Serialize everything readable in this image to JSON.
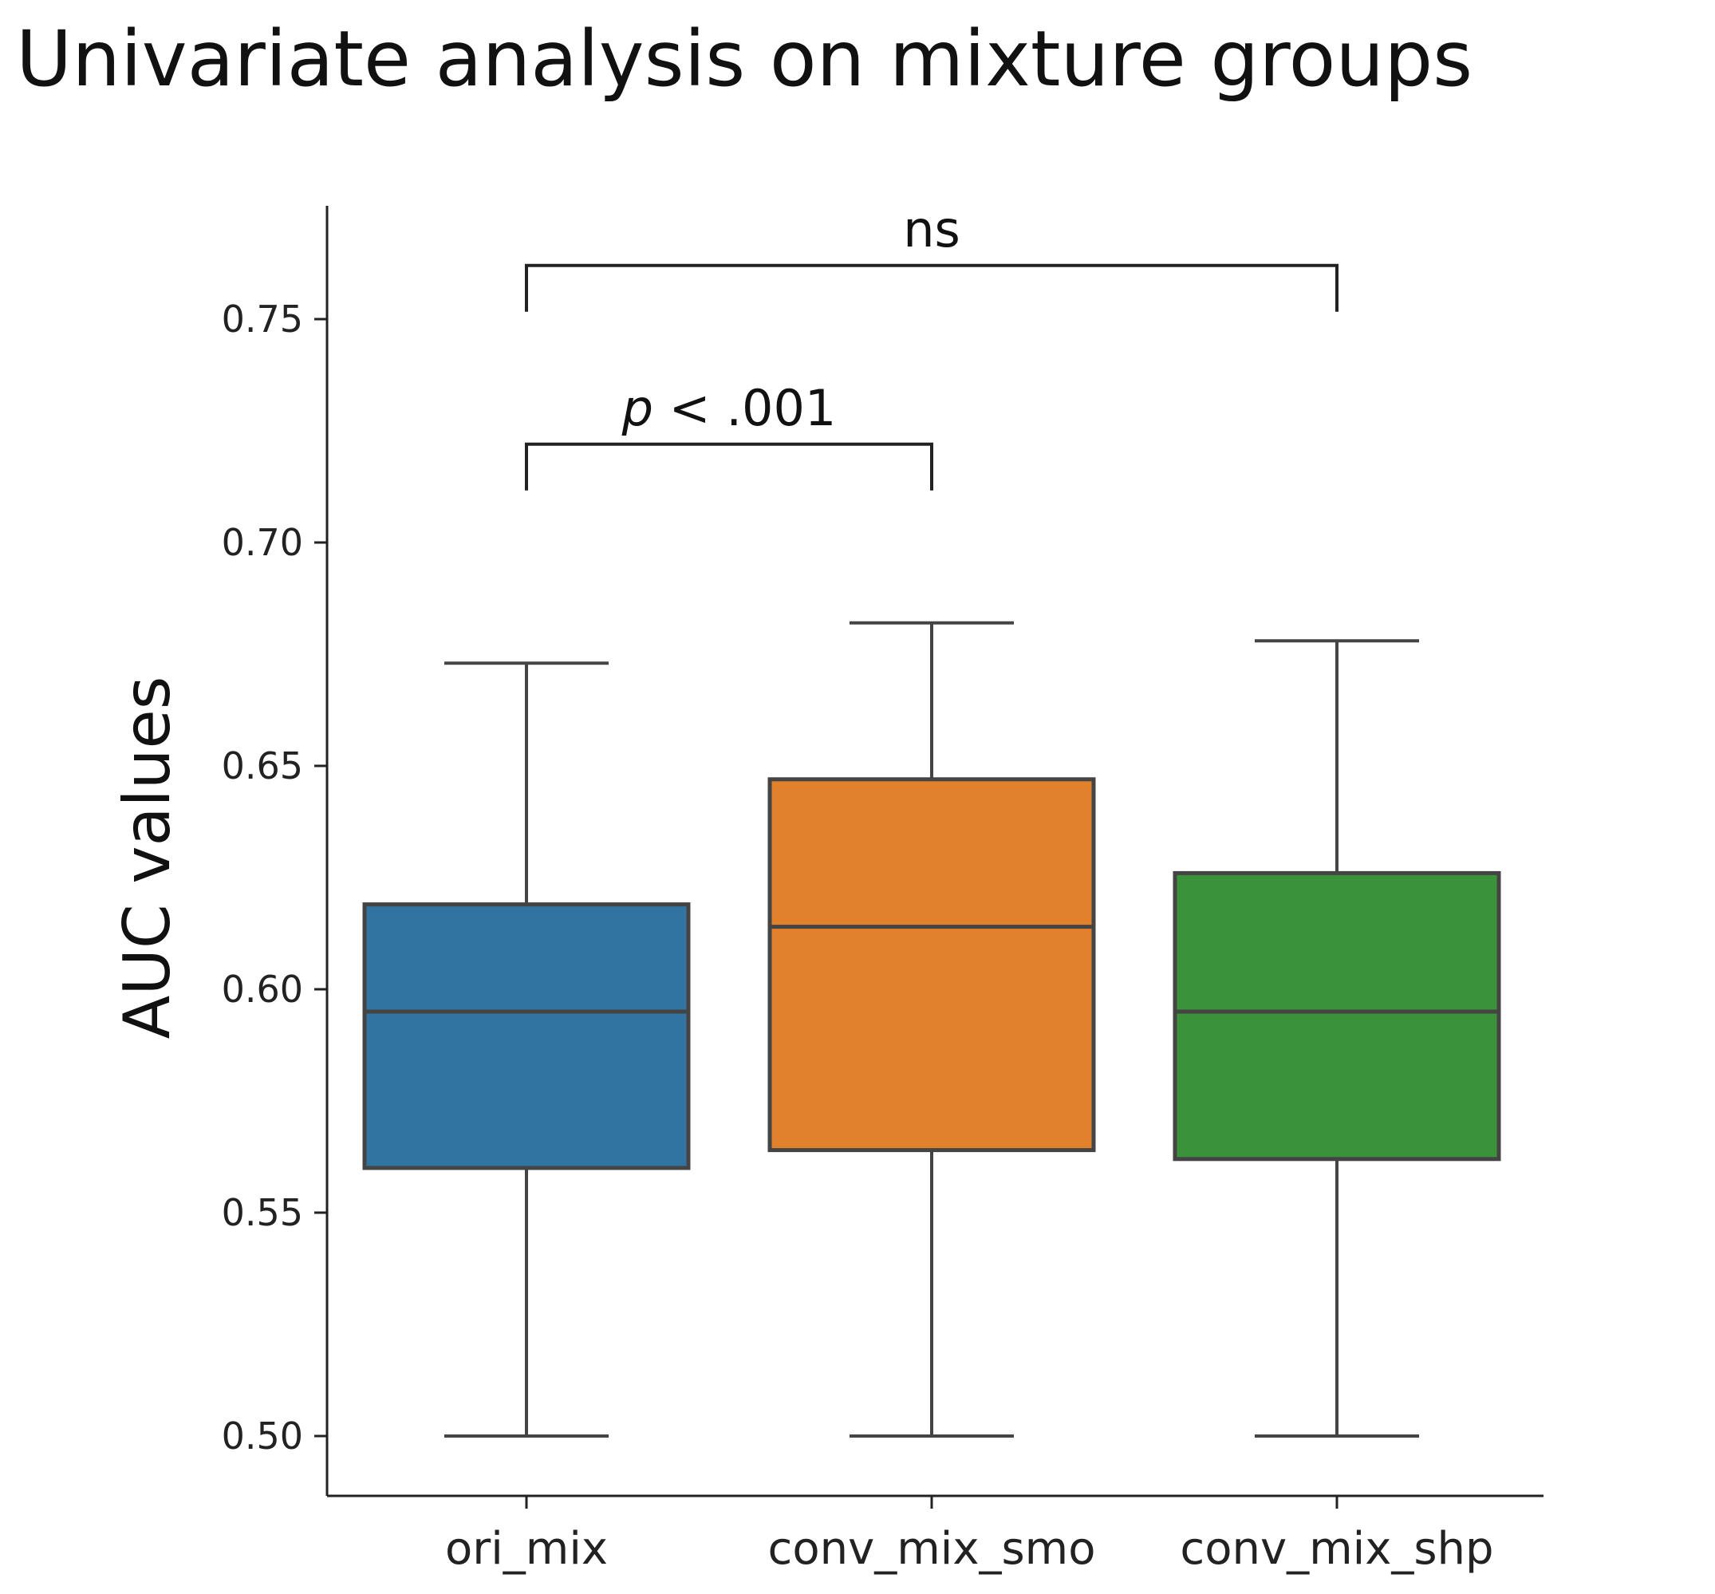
{
  "chart_data": {
    "type": "box",
    "title": "Univariate analysis on mixture groups",
    "xlabel": "",
    "ylabel": "AUC values",
    "ylim": [
      0.485,
      0.775
    ],
    "yticks": [
      "0.50",
      "0.55",
      "0.60",
      "0.65",
      "0.70",
      "0.75"
    ],
    "ytick_values": [
      0.5,
      0.55,
      0.6,
      0.65,
      0.7,
      0.75
    ],
    "grid": false,
    "categories": [
      "ori_mix",
      "conv_mix_smo",
      "conv_mix_shp"
    ],
    "boxes": [
      {
        "category": "ori_mix",
        "whisker_low": 0.5,
        "q1": 0.56,
        "median": 0.595,
        "q3": 0.619,
        "whisker_high": 0.673,
        "color": "#3274a1"
      },
      {
        "category": "conv_mix_smo",
        "whisker_low": 0.5,
        "q1": 0.564,
        "median": 0.614,
        "q3": 0.647,
        "whisker_high": 0.682,
        "color": "#e1812c"
      },
      {
        "category": "conv_mix_shp",
        "whisker_low": 0.5,
        "q1": 0.562,
        "median": 0.595,
        "q3": 0.626,
        "whisker_high": 0.678,
        "color": "#3a923a"
      }
    ],
    "annotations": [
      {
        "label": "p < .001",
        "label_italic_part": "p",
        "label_rest": " < .001",
        "from": "ori_mix",
        "to": "conv_mix_smo",
        "y": 0.722
      },
      {
        "label": "ns",
        "from": "ori_mix",
        "to": "conv_mix_shp",
        "y": 0.762
      }
    ],
    "line_color": "#444444"
  }
}
